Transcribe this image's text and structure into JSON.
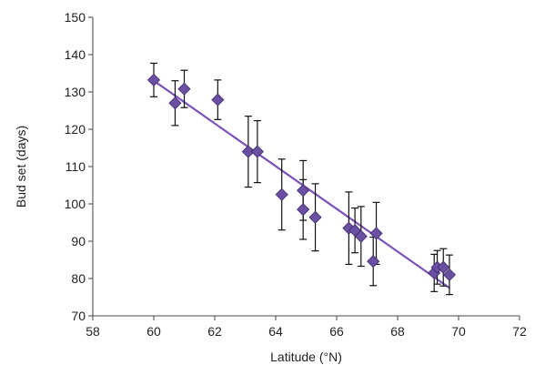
{
  "chart_data": {
    "type": "scatter",
    "title": "",
    "xlabel": "Latitude (°N)",
    "ylabel": "Bud set (days)",
    "xlim": [
      58,
      72
    ],
    "ylim": [
      70,
      150
    ],
    "xticks": [
      "58",
      "60",
      "62",
      "64",
      "66",
      "68",
      "70",
      "72"
    ],
    "yticks": [
      "70",
      "80",
      "90",
      "100",
      "110",
      "120",
      "130",
      "140",
      "150"
    ],
    "grid": false,
    "legend": "none",
    "marker_color": "#6a4fa3",
    "line_color": "#7b52b8",
    "points": [
      {
        "x": 60.0,
        "y": 133.2,
        "err": 4.5
      },
      {
        "x": 60.7,
        "y": 127.0,
        "err": 6.0
      },
      {
        "x": 61.0,
        "y": 130.8,
        "err": 5.0
      },
      {
        "x": 62.1,
        "y": 127.9,
        "err": 5.3
      },
      {
        "x": 63.1,
        "y": 114.0,
        "err": 9.5
      },
      {
        "x": 63.4,
        "y": 114.0,
        "err": 8.3
      },
      {
        "x": 64.2,
        "y": 102.5,
        "err": 9.5
      },
      {
        "x": 64.9,
        "y": 103.6,
        "err": 8.0
      },
      {
        "x": 64.9,
        "y": 98.5,
        "err": 8.0
      },
      {
        "x": 65.3,
        "y": 96.4,
        "err": 9.0
      },
      {
        "x": 66.4,
        "y": 93.5,
        "err": 9.7
      },
      {
        "x": 66.6,
        "y": 92.9,
        "err": 6.0
      },
      {
        "x": 66.8,
        "y": 91.3,
        "err": 8.0
      },
      {
        "x": 67.2,
        "y": 84.6,
        "err": 6.5
      },
      {
        "x": 67.3,
        "y": 92.1,
        "err": 8.3
      },
      {
        "x": 69.2,
        "y": 81.5,
        "err": 5.0
      },
      {
        "x": 69.3,
        "y": 83.0,
        "err": 4.5
      },
      {
        "x": 69.5,
        "y": 83.0,
        "err": 5.0
      },
      {
        "x": 69.7,
        "y": 81.0,
        "err": 5.3
      }
    ],
    "trend_line": {
      "x": [
        60.0,
        69.7
      ],
      "y": [
        133.0,
        77.5
      ]
    }
  }
}
